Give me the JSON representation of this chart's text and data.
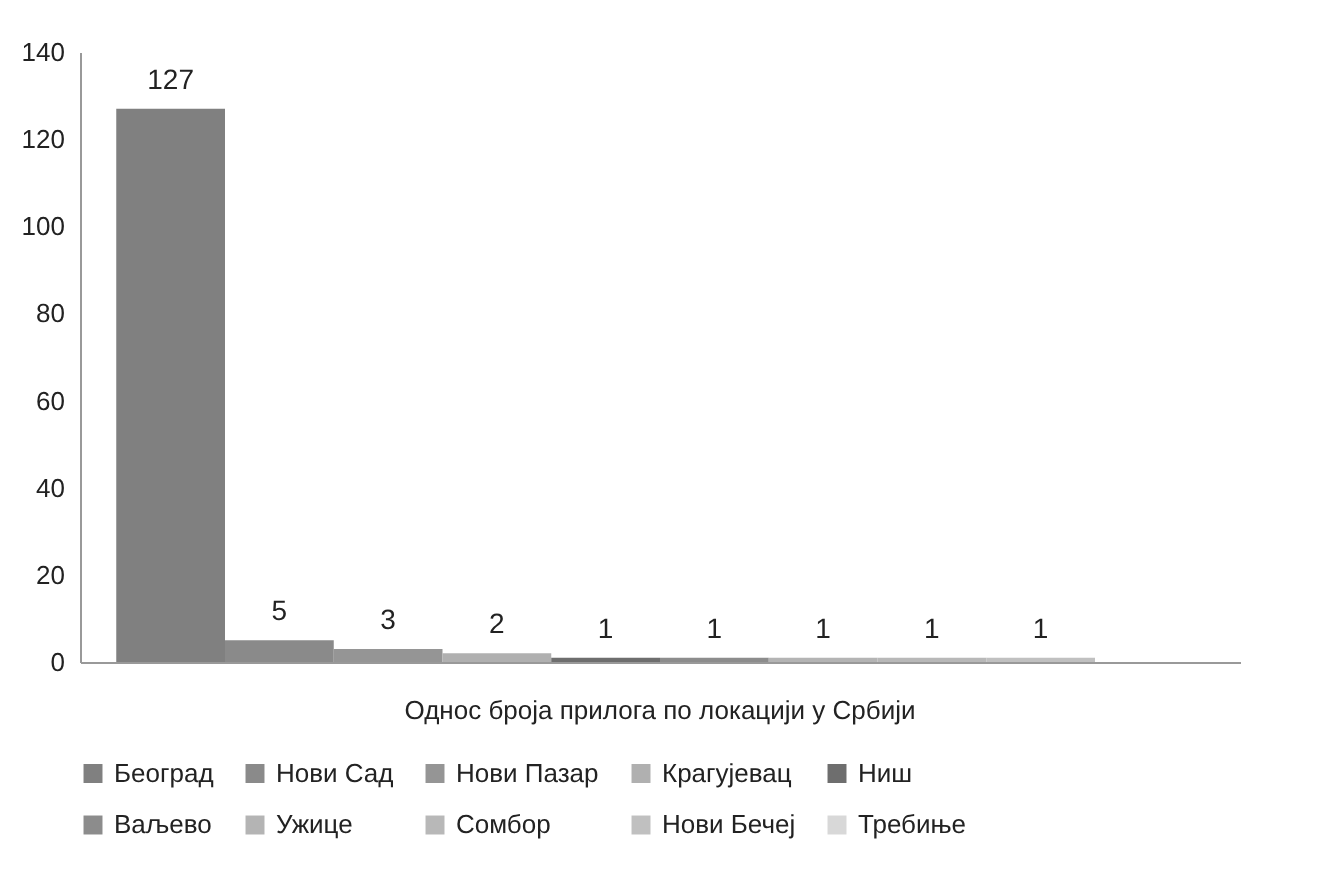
{
  "chart_data": {
    "type": "bar",
    "categories": [
      "Однос броја прилога по локацији у Србији"
    ],
    "series": [
      {
        "name": "Београд",
        "color": "#808080",
        "values": [
          127
        ]
      },
      {
        "name": "Нови Сад",
        "color": "#8a8a8a",
        "values": [
          5
        ]
      },
      {
        "name": "Нови Пазар",
        "color": "#959595",
        "values": [
          3
        ]
      },
      {
        "name": "Крагујевац",
        "color": "#b0b0b0",
        "values": [
          2
        ]
      },
      {
        "name": "Ниш",
        "color": "#6e6e6e",
        "values": [
          1
        ]
      },
      {
        "name": "Ваљево",
        "color": "#8c8c8c",
        "values": [
          1
        ]
      },
      {
        "name": "Ужице",
        "color": "#b4b4b4",
        "values": [
          1
        ]
      },
      {
        "name": "Сомбор",
        "color": "#b8b8b8",
        "values": [
          1
        ]
      },
      {
        "name": "Нови Бечеј",
        "color": "#c0c0c0",
        "values": [
          1
        ]
      },
      {
        "name": "Требиње",
        "color": "#d8d8d8",
        "values": [
          null
        ]
      }
    ],
    "ylim": [
      0,
      140
    ],
    "yticks": [
      0,
      20,
      40,
      60,
      80,
      100,
      120,
      140
    ],
    "grid": false,
    "legend": "bottom",
    "data_labels": true
  }
}
